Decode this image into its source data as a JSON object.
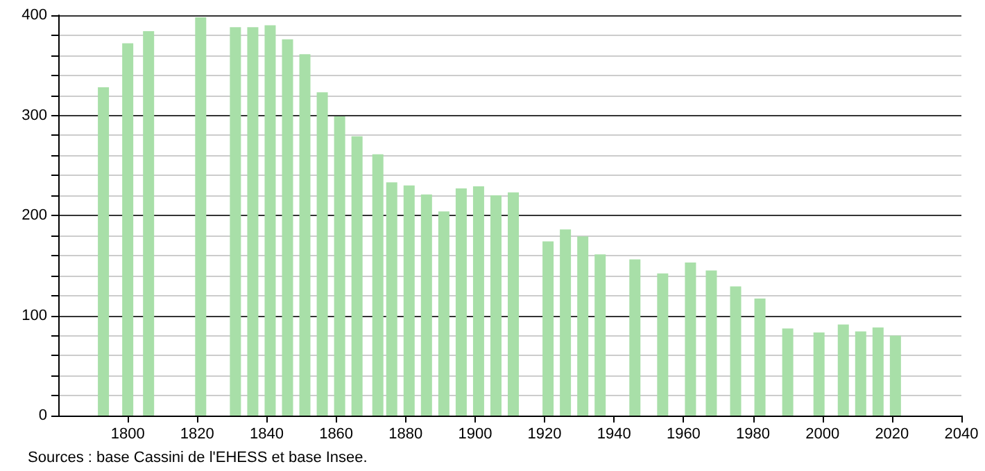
{
  "chart_data": {
    "type": "bar",
    "x": [
      1793,
      1800,
      1806,
      1821,
      1831,
      1836,
      1841,
      1846,
      1851,
      1856,
      1861,
      1866,
      1872,
      1876,
      1881,
      1886,
      1891,
      1896,
      1901,
      1906,
      1911,
      1921,
      1926,
      1931,
      1936,
      1946,
      1954,
      1962,
      1968,
      1975,
      1982,
      1990,
      1999,
      2006,
      2011,
      2016,
      2021
    ],
    "values": [
      328,
      372,
      384,
      398,
      388,
      388,
      390,
      376,
      361,
      323,
      299,
      279,
      261,
      233,
      230,
      221,
      204,
      227,
      229,
      220,
      223,
      174,
      186,
      179,
      161,
      156,
      142,
      153,
      145,
      129,
      117,
      87,
      83,
      91,
      84,
      88,
      80
    ],
    "color": "#a8dfa8",
    "xlim": [
      1780,
      2040
    ],
    "xticks": [
      1800,
      1820,
      1840,
      1860,
      1880,
      1900,
      1920,
      1940,
      1960,
      1980,
      2000,
      2020,
      2040
    ],
    "ylim": [
      0,
      400
    ],
    "yticks": [
      0,
      {
        "value": 20,
        "label": null
      },
      {
        "value": 40,
        "label": null
      },
      {
        "value": 60,
        "label": null
      },
      {
        "value": 80,
        "label": null
      },
      100,
      {
        "value": 120,
        "label": null
      },
      {
        "value": 140,
        "label": null
      },
      {
        "value": 160,
        "label": null
      },
      {
        "value": 180,
        "label": null
      },
      200,
      {
        "value": 220,
        "label": null
      },
      {
        "value": 240,
        "label": null
      },
      {
        "value": 260,
        "label": null
      },
      {
        "value": 280,
        "label": null
      },
      300,
      {
        "value": 320,
        "label": null
      },
      {
        "value": 340,
        "label": null
      },
      {
        "value": 360,
        "label": null
      },
      {
        "value": 380,
        "label": null
      },
      400
    ],
    "grid": "y",
    "annotations": [
      "Sources : base Cassini de l'EHESS et base Insee."
    ]
  }
}
